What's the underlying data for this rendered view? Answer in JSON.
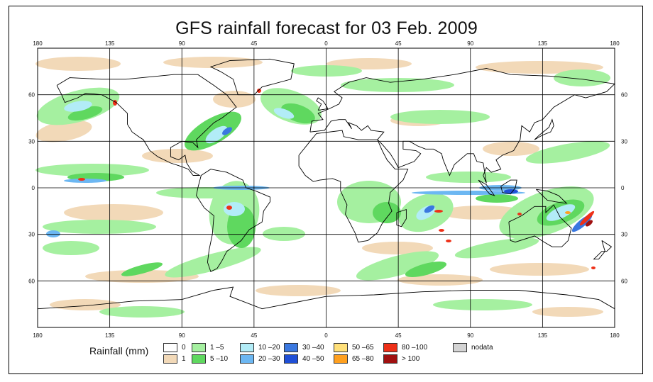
{
  "title": "GFS rainfall forecast for 03 Feb. 2009",
  "lon_labels": [
    "180",
    "135",
    "90",
    "45",
    "0",
    "45",
    "90",
    "135",
    "180"
  ],
  "lat_labels": [
    "60",
    "30",
    "0",
    "30",
    "60"
  ],
  "legend": {
    "title": "Rainfall (mm)",
    "items": [
      {
        "label": "0",
        "color": "#ffffff"
      },
      {
        "label": "1",
        "color": "#f2d9b8"
      },
      {
        "label": "1 –5",
        "color": "#a5f0a0"
      },
      {
        "label": "5 –10",
        "color": "#5fd85f"
      },
      {
        "label": "10 –20",
        "color": "#b2ecf7"
      },
      {
        "label": "20 –30",
        "color": "#6cb7f2"
      },
      {
        "label": "30 –40",
        "color": "#3a78e0"
      },
      {
        "label": "40 –50",
        "color": "#1f4fd6"
      },
      {
        "label": "50 –65",
        "color": "#ffe07a"
      },
      {
        "label": "65 –80",
        "color": "#ffa01f"
      },
      {
        "label": "80 –100",
        "color": "#ee3018"
      },
      {
        "label": "> 100",
        "color": "#a01010"
      },
      {
        "label": "nodata",
        "color": "#d4d4d4"
      }
    ]
  }
}
